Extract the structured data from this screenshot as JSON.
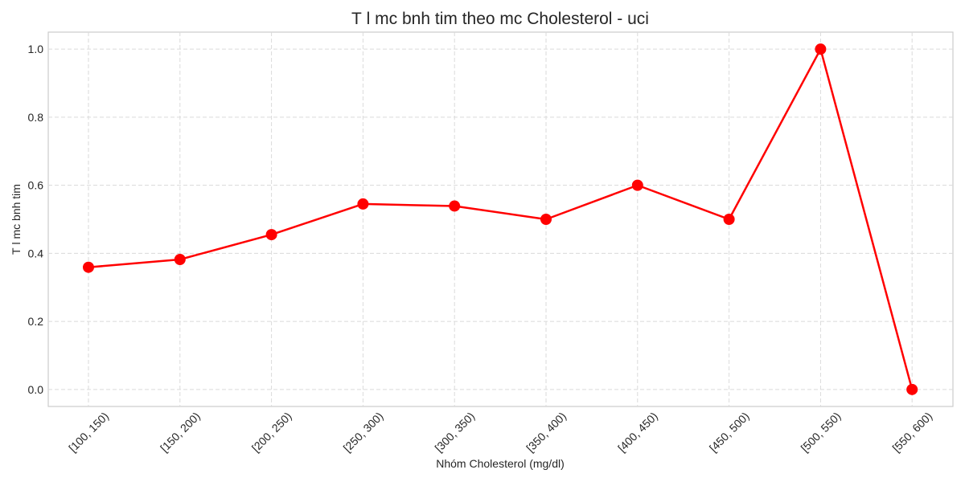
{
  "chart_data": {
    "type": "line",
    "title": "T\u001f l\u001f m\u001fc b\u001fnh tim theo m\u001fc Cholesterol - uci",
    "xlabel": "Nhóm Cholesterol (mg/dl)",
    "ylabel": "T\u001f l\u001f m\u001fc b\u001fnh tim",
    "categories": [
      "[100, 150)",
      "[150, 200)",
      "[200, 250)",
      "[250, 300)",
      "[300, 350)",
      "[350, 400)",
      "[400, 450)",
      "[450, 500)",
      "[500, 550)",
      "[550, 600)"
    ],
    "series": [
      {
        "values": [
          0.359,
          0.382,
          0.455,
          0.545,
          0.539,
          0.5,
          0.6,
          0.5,
          1.0,
          0.0
        ],
        "color": "#ff0000",
        "marker": "circle"
      }
    ],
    "ylim": [
      -0.05,
      1.05
    ],
    "yticks": [
      0.0,
      0.2,
      0.4,
      0.6,
      0.8,
      1.0
    ],
    "ytick_labels": [
      "0.0",
      "0.2",
      "0.4",
      "0.6",
      "0.8",
      "1.0"
    ],
    "grid": true,
    "grid_style": "dashed",
    "xtick_rotation": 45,
    "colors": {
      "line": "#ff0000",
      "marker": "#ff0000",
      "grid": "#dadada",
      "frame": "#cccccc",
      "text": "#262626"
    }
  }
}
